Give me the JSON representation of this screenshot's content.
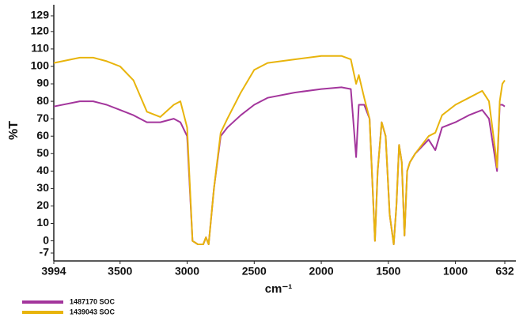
{
  "chart_data": {
    "type": "line",
    "xlabel": "cm⁻¹",
    "ylabel": "%T",
    "xlim": [
      3994,
      632
    ],
    "ylim": [
      -7,
      129
    ],
    "xticks": [
      3994,
      3500,
      3000,
      2500,
      2000,
      1500,
      1000,
      632
    ],
    "yticks": [
      -7,
      0,
      10,
      20,
      30,
      40,
      50,
      60,
      70,
      80,
      90,
      100,
      110,
      120,
      129
    ],
    "x": [
      3994,
      3800,
      3700,
      3600,
      3500,
      3400,
      3300,
      3200,
      3100,
      3050,
      3000,
      2960,
      2920,
      2880,
      2860,
      2840,
      2800,
      2750,
      2700,
      2600,
      2500,
      2400,
      2200,
      2000,
      1850,
      1780,
      1740,
      1720,
      1680,
      1640,
      1600,
      1580,
      1550,
      1520,
      1490,
      1460,
      1440,
      1420,
      1400,
      1380,
      1360,
      1340,
      1300,
      1200,
      1150,
      1100,
      1000,
      900,
      800,
      750,
      700,
      690,
      670,
      650,
      632
    ],
    "series": [
      {
        "name": "1487170 SOC",
        "color": "#a3359c",
        "values": [
          77,
          80,
          80,
          78,
          75,
          72,
          68,
          68,
          70,
          68,
          60,
          0,
          -2,
          -2,
          2,
          -2,
          30,
          60,
          65,
          72,
          78,
          82,
          85,
          87,
          88,
          87,
          48,
          78,
          78,
          70,
          0,
          40,
          68,
          60,
          15,
          -2,
          20,
          55,
          45,
          3,
          40,
          45,
          50,
          58,
          52,
          65,
          68,
          72,
          75,
          70,
          45,
          40,
          78,
          78,
          77
        ]
      },
      {
        "name": "1439043 SOC",
        "color": "#e8b40c",
        "values": [
          102,
          105,
          105,
          103,
          100,
          92,
          74,
          71,
          78,
          80,
          65,
          0,
          -2,
          -2,
          2,
          -2,
          30,
          62,
          70,
          85,
          98,
          102,
          104,
          106,
          106,
          104,
          90,
          95,
          82,
          70,
          0,
          40,
          68,
          60,
          15,
          -2,
          20,
          55,
          45,
          3,
          40,
          45,
          50,
          60,
          62,
          72,
          78,
          82,
          86,
          80,
          50,
          42,
          80,
          90,
          92
        ]
      }
    ]
  }
}
